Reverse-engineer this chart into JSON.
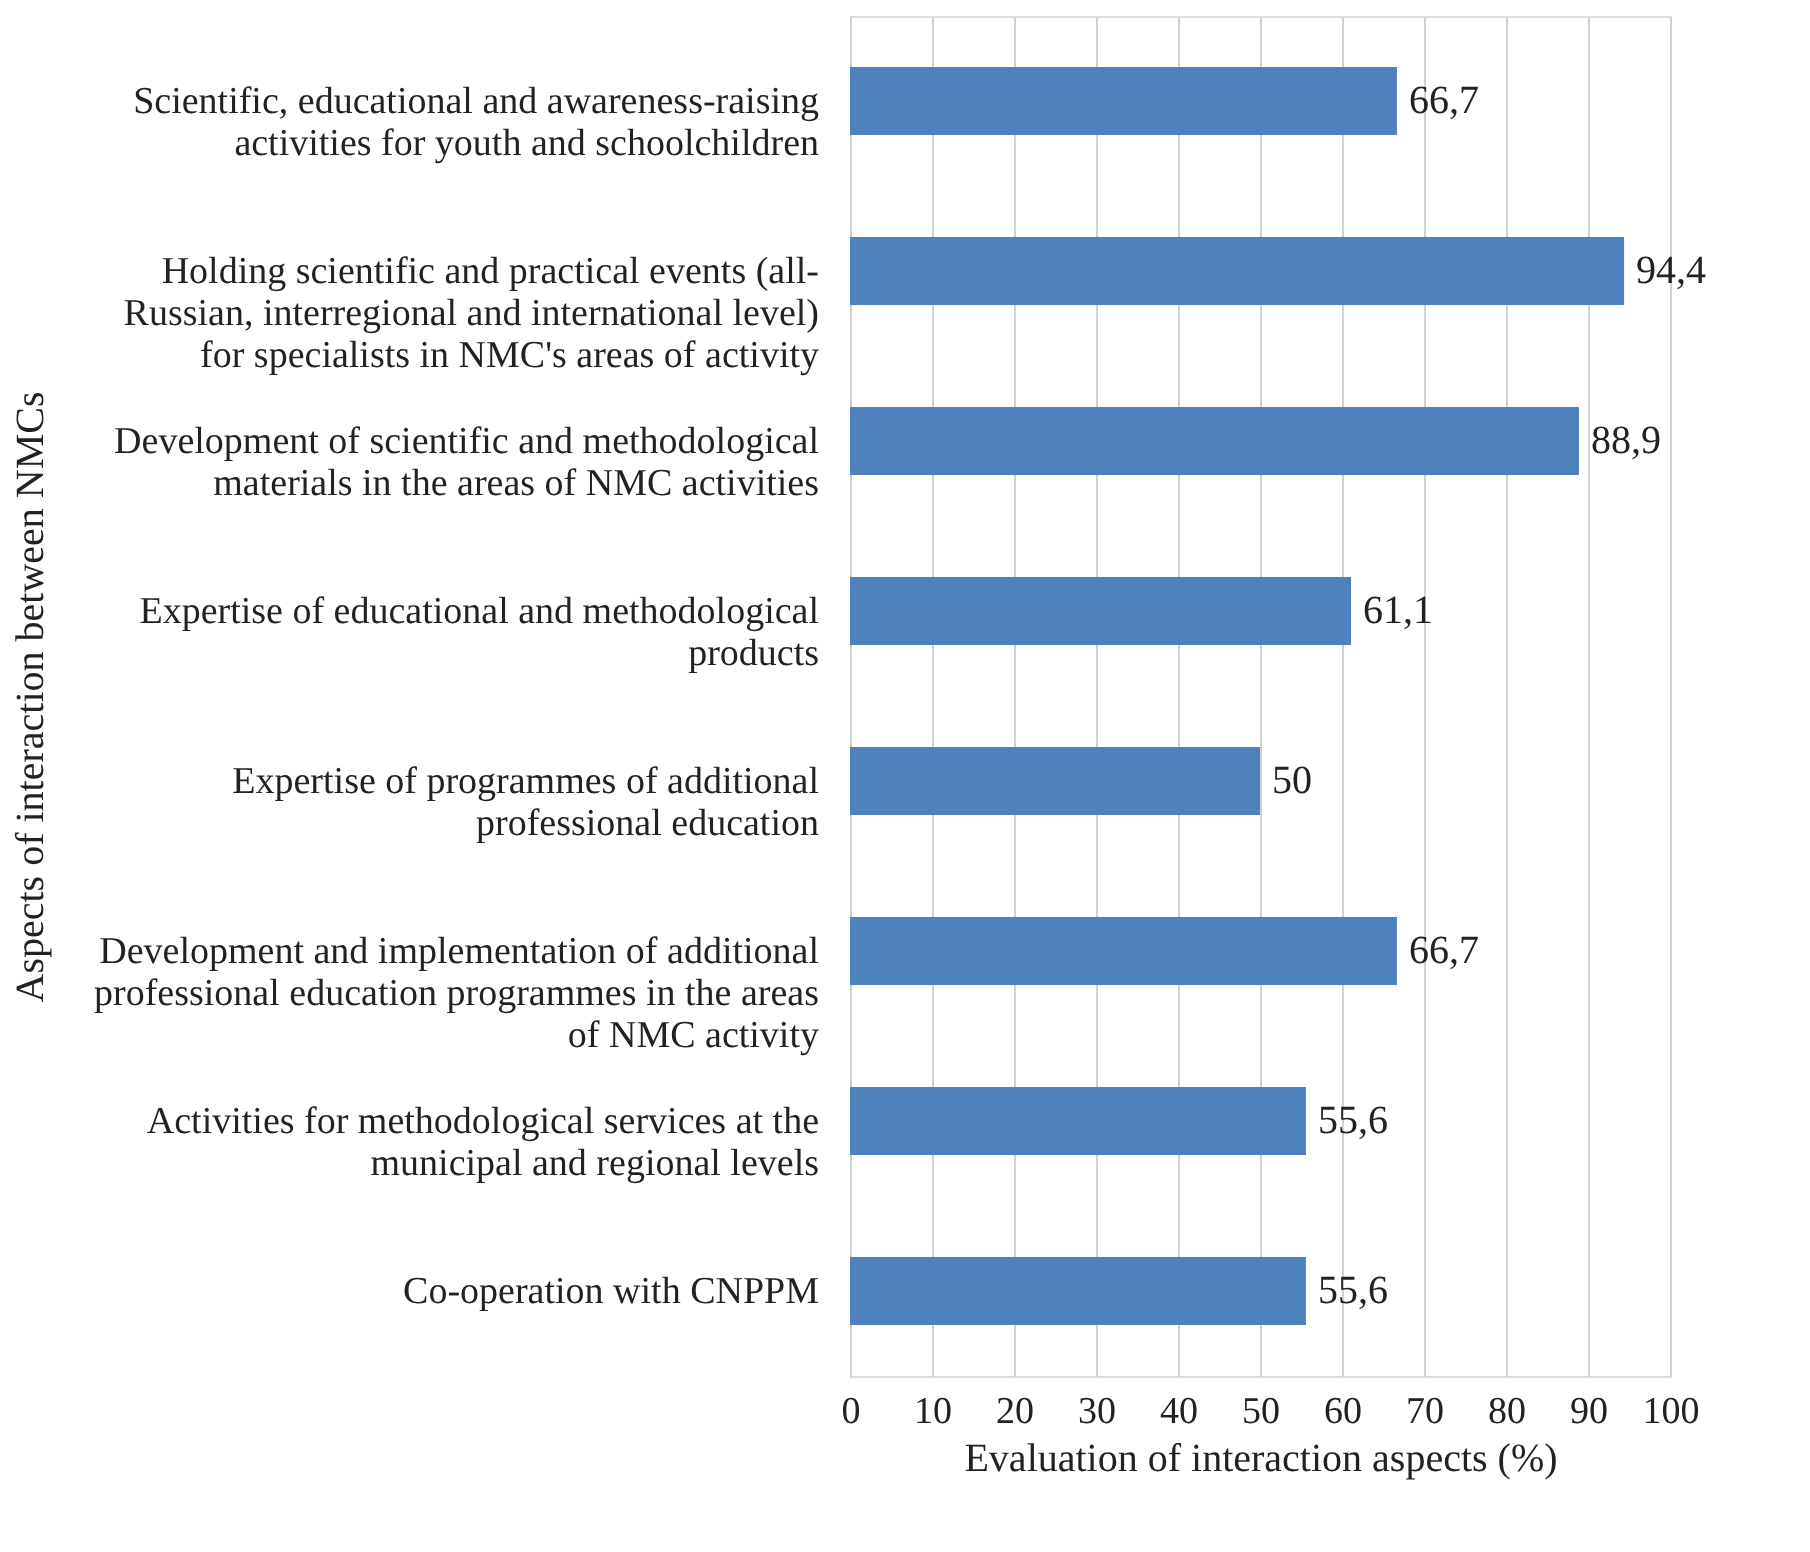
{
  "chart_data": {
    "type": "bar",
    "orientation": "horizontal",
    "xlabel": "Evaluation of interaction aspects (%)",
    "ylabel": "Aspects of interaction between NMCs",
    "categories": [
      "Scientific, educational and awareness-raising\nactivities for youth and schoolchildren",
      "Holding scientific and practical events (all-\nRussian, interregional and international level)\nfor specialists in NMC's areas of activity",
      "Development of scientific and methodological\nmaterials in the areas of NMC activities",
      "Expertise of educational and methodological\nproducts",
      "Expertise of programmes of additional\nprofessional education",
      "Development and implementation of additional\nprofessional education programmes in the areas\nof NMC activity",
      "Activities for methodological services at the\nmunicipal and regional levels",
      "Co-operation with CNPPM"
    ],
    "values": [
      66.7,
      94.4,
      88.9,
      61.1,
      50,
      66.7,
      55.6,
      55.6
    ],
    "value_labels": [
      "66,7",
      "94,4",
      "88,9",
      "61,1",
      "50",
      "66,7",
      "55,6",
      "55,6"
    ],
    "color": "#4f81bd",
    "xlim": [
      0,
      100
    ],
    "xticks": [
      0,
      10,
      20,
      30,
      40,
      50,
      60,
      70,
      80,
      90,
      100
    ],
    "grid": "x"
  }
}
